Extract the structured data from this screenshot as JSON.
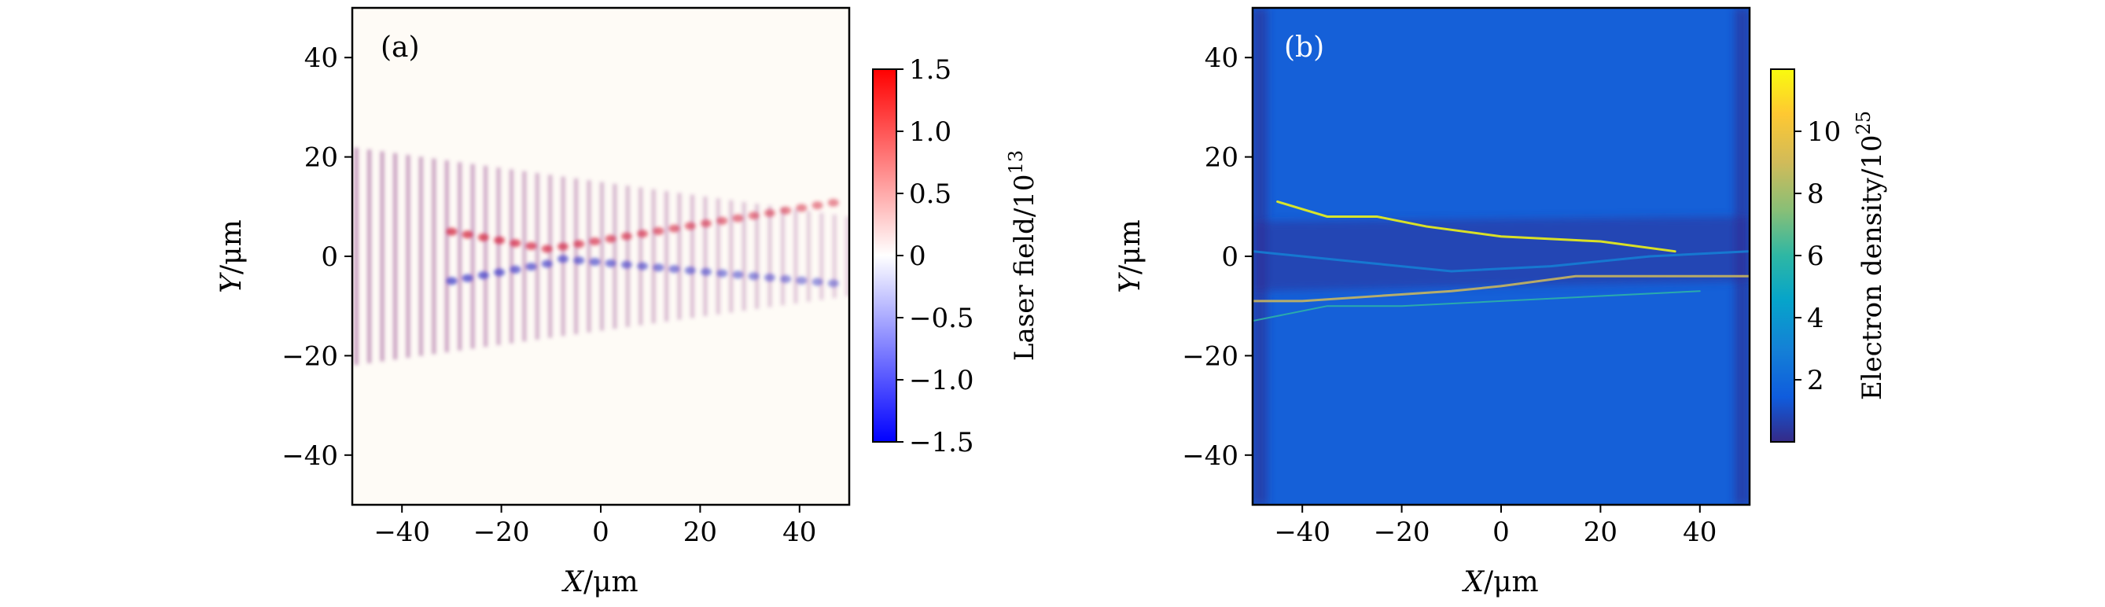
{
  "chart_data": [
    {
      "type": "heatmap",
      "panel_label": "(a)",
      "xlabel_var": "X",
      "xlabel_unit": "/μm",
      "ylabel_var": "Y",
      "ylabel_unit": "/μm",
      "xlim": [
        -50,
        50
      ],
      "ylim": [
        -50,
        50
      ],
      "xticks": [
        -40,
        -20,
        0,
        20,
        40
      ],
      "yticks": [
        -40,
        -20,
        0,
        20,
        40
      ],
      "xtick_labels": [
        "−40",
        "−20",
        "0",
        "20",
        "40"
      ],
      "ytick_labels": [
        "−40",
        "−20",
        "0",
        "20",
        "40"
      ],
      "colorbar": {
        "label_main": "Laser field/10",
        "label_exp": "13",
        "range": [
          -1.5,
          1.5
        ],
        "ticks": [
          1.5,
          1.0,
          0.5,
          0,
          -0.5,
          -1.0,
          -1.5
        ],
        "tick_labels": [
          "1.5",
          "1.0",
          "0.5",
          "0",
          "−0.5",
          "−1.0",
          "−1.5"
        ],
        "colormap": "bwr",
        "colors": [
          "#0000ff",
          "#ffffff",
          "#ff0000"
        ]
      }
    },
    {
      "type": "heatmap",
      "panel_label": "(b)",
      "xlabel_var": "X",
      "xlabel_unit": "/μm",
      "ylabel_var": "Y",
      "ylabel_unit": "/μm",
      "xlim": [
        -50,
        50
      ],
      "ylim": [
        -50,
        50
      ],
      "xticks": [
        -40,
        -20,
        0,
        20,
        40
      ],
      "yticks": [
        -40,
        -20,
        0,
        20,
        40
      ],
      "xtick_labels": [
        "−40",
        "−20",
        "0",
        "20",
        "40"
      ],
      "ytick_labels": [
        "−40",
        "−20",
        "0",
        "20",
        "40"
      ],
      "colorbar": {
        "label_main": "Electron density/10",
        "label_exp": "25",
        "range": [
          0,
          12
        ],
        "ticks": [
          10,
          8,
          6,
          4,
          2
        ],
        "tick_labels": [
          "10",
          "8",
          "6",
          "4",
          "2"
        ],
        "colormap": "parula",
        "colors": [
          "#352a87",
          "#0f5cdd",
          "#1481d6",
          "#06a4ca",
          "#2eb7a4",
          "#87bf77",
          "#d1bb59",
          "#fec832",
          "#f9fb0e"
        ]
      },
      "background_color": "#1560d8"
    }
  ]
}
